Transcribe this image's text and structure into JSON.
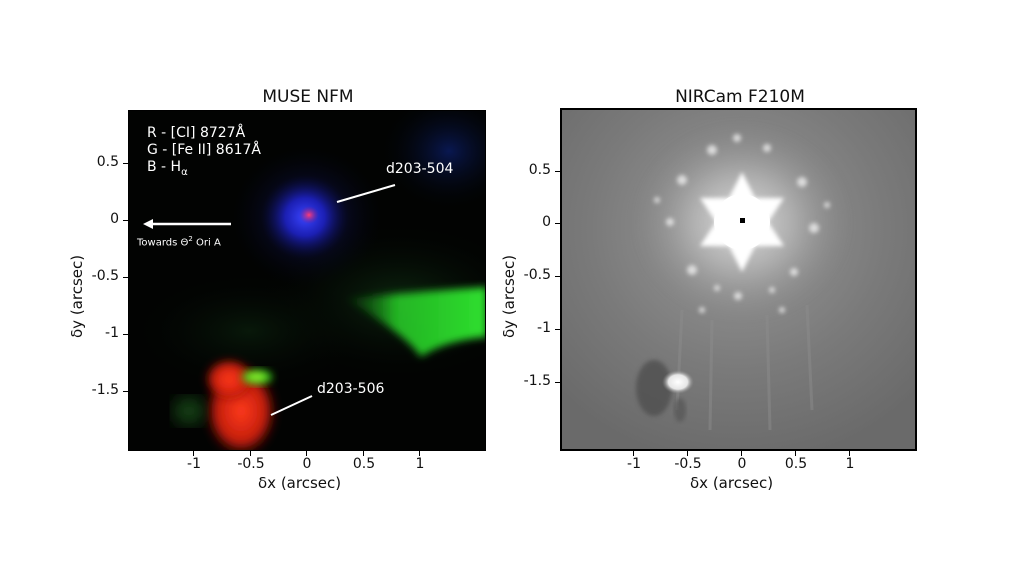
{
  "panels": {
    "left": {
      "title": "MUSE NFM",
      "legend": [
        "R - [CI] 8727Å",
        "G - [Fe II] 8617Å",
        "B - H"
      ],
      "legend_sub": "α",
      "arrow_text": "Towards Θ",
      "arrow_sup": "2",
      "arrow_tail": " Ori A",
      "labels": {
        "top_source": "d203-504",
        "bottom_source": "d203-506"
      },
      "yticks": [
        "0.5",
        "0",
        "-0.5",
        "-1",
        "-1.5"
      ],
      "xticks": [
        "-1",
        "-0.5",
        "0",
        "0.5",
        "1"
      ],
      "xlabel": "δx (arcsec)",
      "ylabel": "δy (arcsec)"
    },
    "right": {
      "title": "NIRCam F210M",
      "yticks": [
        "0.5",
        "0",
        "-0.5",
        "-1",
        "-1.5"
      ],
      "xticks": [
        "-1",
        "-0.5",
        "0",
        "0.5",
        "1"
      ],
      "xlabel": "δx (arcsec)",
      "ylabel": "δy (arcsec)"
    }
  }
}
